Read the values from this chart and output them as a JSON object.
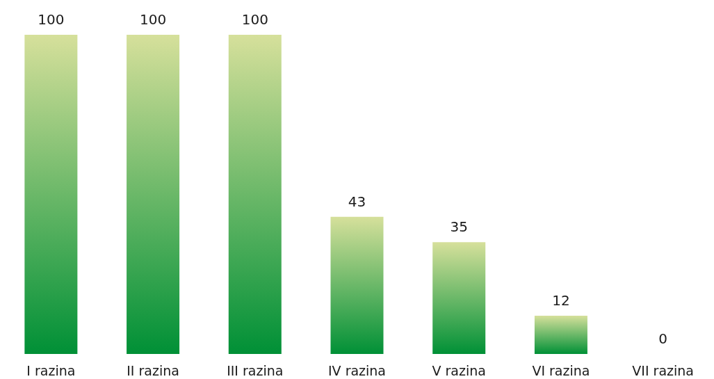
{
  "chart_data": {
    "type": "bar",
    "categories": [
      "I razina",
      "II razina",
      "III razina",
      "IV razina",
      "V razina",
      "VI razina",
      "VII razina"
    ],
    "values": [
      100,
      100,
      100,
      43,
      35,
      12,
      0
    ],
    "color": "#009036",
    "data_labels": true
  }
}
